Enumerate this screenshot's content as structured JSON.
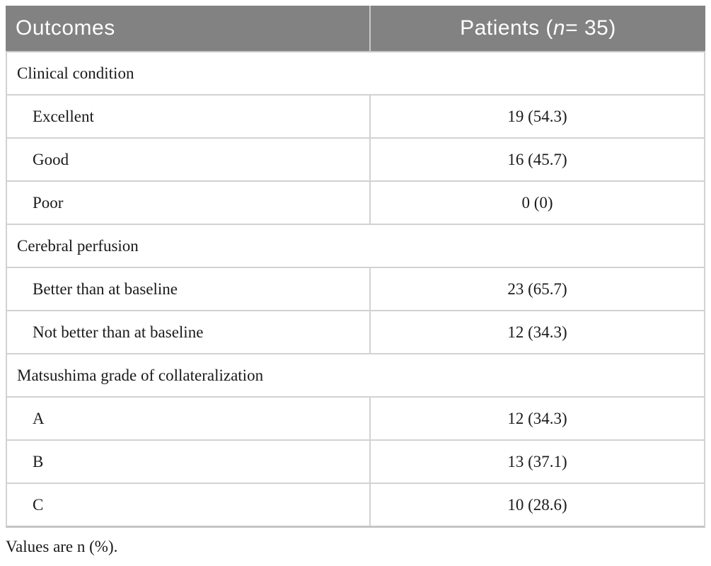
{
  "colors": {
    "header_bg": "#828282",
    "header_text": "#ffffff",
    "border": "#d2d2d2",
    "body_text": "#1a1a1a"
  },
  "table": {
    "columns": [
      {
        "label": "Outcomes"
      },
      {
        "prefix": "Patients (",
        "variable": "n",
        "suffix": " = 35)"
      }
    ],
    "rows": [
      {
        "type": "section",
        "label": "Clinical condition"
      },
      {
        "type": "item",
        "label": "Excellent",
        "value": "19 (54.3)"
      },
      {
        "type": "item",
        "label": "Good",
        "value": "16 (45.7)"
      },
      {
        "type": "item",
        "label": "Poor",
        "value": "0 (0)"
      },
      {
        "type": "section",
        "label": "Cerebral perfusion"
      },
      {
        "type": "item",
        "label": "Better than at baseline",
        "value": "23 (65.7)"
      },
      {
        "type": "item",
        "label": "Not better than at baseline",
        "value": "12 (34.3)"
      },
      {
        "type": "section",
        "label": "Matsushima grade of collateralization"
      },
      {
        "type": "item",
        "label": "A",
        "value": "12 (34.3)"
      },
      {
        "type": "item",
        "label": "B",
        "value": "13 (37.1)"
      },
      {
        "type": "item",
        "label": "C",
        "value": "10 (28.6)"
      }
    ]
  },
  "footnote": "Values are n (%)."
}
